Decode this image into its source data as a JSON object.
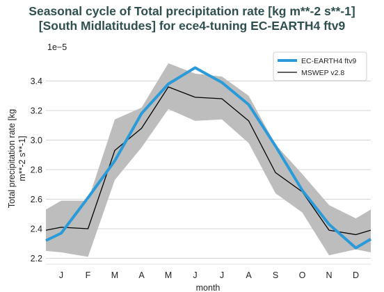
{
  "chart_data": {
    "type": "line",
    "title_line1": "Seasonal cycle of Total precipitation rate [kg m**-2 s**-1]",
    "title_line2": "[South Midlatitudes] for ece4-tuning EC-EARTH4 ftv9",
    "xlabel": "month",
    "ylabel_line1": "Total precipitation rate [kg",
    "ylabel_line2": "m**-2 s**-1]",
    "offset_label": "1e−5",
    "categories": [
      "J",
      "F",
      "M",
      "A",
      "M",
      "J",
      "J",
      "A",
      "S",
      "O",
      "N",
      "D"
    ],
    "yticks": [
      "2.2",
      "2.4",
      "2.6",
      "2.8",
      "3.0",
      "3.2",
      "3.4"
    ],
    "ylim": [
      2.16,
      3.6
    ],
    "grid": "y",
    "legend_position": "top-right",
    "series": [
      {
        "name": "EC-EARTH4 ftv9",
        "color": "#2a9ad8",
        "values": [
          2.37,
          2.61,
          2.86,
          3.18,
          3.38,
          3.49,
          3.39,
          3.24,
          2.96,
          2.66,
          2.43,
          2.27
        ],
        "wrap_start": 2.32,
        "wrap_end": 2.33
      },
      {
        "name": "MSWEP v2.8",
        "color": "#000000",
        "values": [
          2.41,
          2.4,
          2.93,
          3.08,
          3.36,
          3.29,
          3.28,
          3.13,
          2.78,
          2.65,
          2.39,
          2.36
        ],
        "wrap_start": 2.39,
        "wrap_end": 2.39,
        "band_upper": [
          2.59,
          2.59,
          3.14,
          3.22,
          3.52,
          3.45,
          3.43,
          3.3,
          2.97,
          2.77,
          2.56,
          2.47
        ],
        "band_lower": [
          2.24,
          2.21,
          2.73,
          2.95,
          3.21,
          3.13,
          3.14,
          2.98,
          2.64,
          2.51,
          2.22,
          2.26
        ],
        "band_upper_wrap_start": 2.53,
        "band_upper_wrap_end": 2.53,
        "band_lower_wrap_start": 2.25,
        "band_lower_wrap_end": 2.24,
        "band_color": "#bdbdbd"
      }
    ]
  }
}
